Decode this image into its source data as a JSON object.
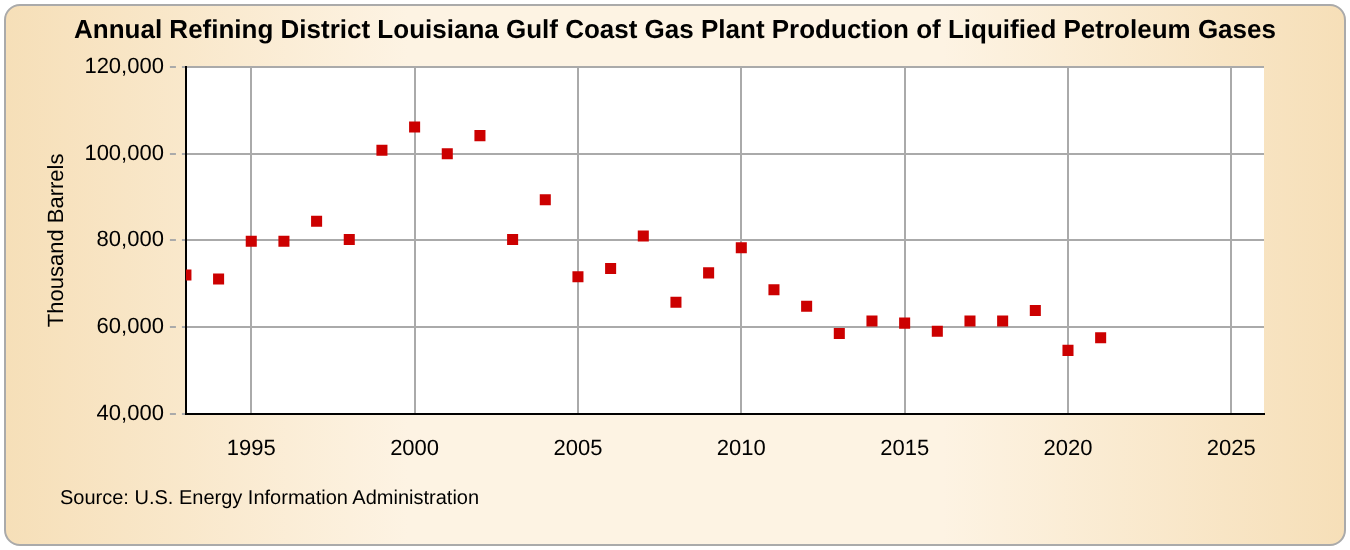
{
  "chart_data": {
    "type": "scatter",
    "title": "Annual Refining District Louisiana Gulf Coast Gas Plant Production of Liquified Petroleum Gases",
    "ylabel": "Thousand Barrels",
    "annotations": [
      "Source: U.S. Energy Information Administration"
    ],
    "x": [
      1993,
      1994,
      1995,
      1996,
      1997,
      1998,
      1999,
      2000,
      2001,
      2002,
      2003,
      2004,
      2005,
      2006,
      2007,
      2008,
      2009,
      2010,
      2011,
      2012,
      2013,
      2014,
      2015,
      2016,
      2017,
      2018,
      2019,
      2020,
      2021
    ],
    "series": [
      {
        "color": "#cc0000",
        "values": [
          72000,
          71100,
          79800,
          79800,
          84400,
          80200,
          100800,
          106200,
          100000,
          104200,
          80200,
          89400,
          71600,
          73500,
          81000,
          65700,
          72500,
          78300,
          68600,
          64800,
          58500,
          61400,
          60900,
          59000,
          61400,
          61400,
          63800,
          54600,
          57500
        ]
      }
    ],
    "xlim": [
      1993,
      2026
    ],
    "xticks": [
      1995,
      2000,
      2005,
      2010,
      2015,
      2020,
      2025
    ],
    "ylim": [
      40000,
      120000
    ],
    "yticks": [
      {
        "value": 40000,
        "label": "40,000"
      },
      {
        "value": 60000,
        "label": "60,000"
      },
      {
        "value": 80000,
        "label": "80,000"
      },
      {
        "value": 100000,
        "label": "100,000"
      },
      {
        "value": 120000,
        "label": "120,000"
      }
    ],
    "grid": true,
    "marker": "square",
    "legend": false
  }
}
